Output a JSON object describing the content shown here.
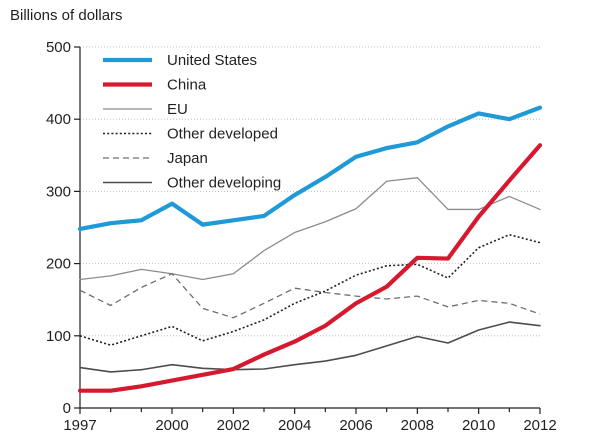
{
  "chart_data": {
    "type": "line",
    "ylabel": "Billions of dollars",
    "xlim": [
      1997,
      2012
    ],
    "ylim": [
      0,
      500
    ],
    "x_ticks": [
      1997,
      2000,
      2002,
      2004,
      2006,
      2008,
      2010,
      2012
    ],
    "x_tick_labels": [
      "1997",
      "2000",
      "2002",
      "2004",
      "2006",
      "2008",
      "2010",
      "2012"
    ],
    "y_ticks": [
      0,
      100,
      200,
      300,
      400,
      500
    ],
    "y_tick_labels": [
      "0",
      "100",
      "200",
      "300",
      "400",
      "500"
    ],
    "grid": "horizontal dotted",
    "legend_position": "top-left",
    "x": [
      1997,
      1998,
      1999,
      2000,
      2001,
      2002,
      2003,
      2004,
      2005,
      2006,
      2007,
      2008,
      2009,
      2010,
      2011,
      2012
    ],
    "series": [
      {
        "name": "United States",
        "color": "#1f9ad6",
        "style": "solid-thick",
        "values": [
          248,
          256,
          260,
          283,
          254,
          260,
          266,
          295,
          320,
          348,
          360,
          368,
          390,
          408,
          400,
          416
        ]
      },
      {
        "name": "China",
        "color": "#d6192e",
        "style": "solid-thick",
        "values": [
          24,
          24,
          30,
          38,
          46,
          54,
          74,
          92,
          114,
          145,
          168,
          208,
          207,
          265,
          315,
          364
        ]
      },
      {
        "name": "EU",
        "color": "#8c8c8c",
        "style": "solid-thin",
        "values": [
          178,
          183,
          192,
          186,
          178,
          186,
          218,
          243,
          258,
          276,
          314,
          319,
          275,
          275,
          293,
          275
        ]
      },
      {
        "name": "Other developed",
        "color": "#231f20",
        "style": "dotted",
        "values": [
          100,
          87,
          100,
          113,
          93,
          106,
          122,
          145,
          162,
          184,
          197,
          199,
          180,
          222,
          240,
          229
        ]
      },
      {
        "name": "Japan",
        "color": "#6d6e71",
        "style": "dashed",
        "values": [
          163,
          142,
          167,
          186,
          138,
          125,
          145,
          166,
          160,
          155,
          151,
          155,
          140,
          149,
          145,
          130
        ]
      },
      {
        "name": "Other developing",
        "color": "#4d4d4f",
        "style": "solid-medium",
        "values": [
          56,
          50,
          53,
          60,
          55,
          53,
          54,
          60,
          65,
          73,
          86,
          99,
          90,
          108,
          119,
          114
        ]
      }
    ]
  }
}
